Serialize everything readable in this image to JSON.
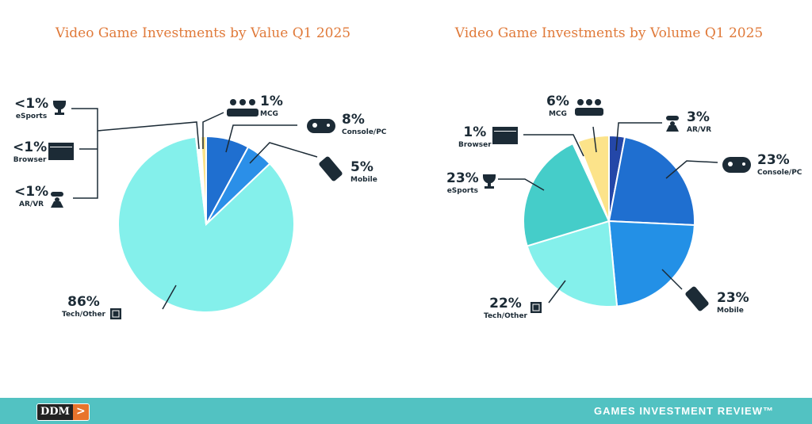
{
  "chart_data": [
    {
      "type": "pie",
      "title": "Video Game Investments by Value Q1 2025",
      "slices": [
        {
          "label": "Console/PC",
          "value": 8,
          "display": "8%",
          "color": "#1f6fd0"
        },
        {
          "label": "Mobile",
          "value": 5,
          "display": "5%",
          "color": "#2b8fe8"
        },
        {
          "label": "Tech/Other",
          "value": 86,
          "display": "86%",
          "color": "#84f0eb"
        },
        {
          "label": "AR/VR",
          "value": 0.3,
          "display": "<1%",
          "color": "#2447a8"
        },
        {
          "label": "Browser",
          "value": 0.3,
          "display": "<1%",
          "color": "#ffffff"
        },
        {
          "label": "eSports",
          "value": 0.3,
          "display": "<1%",
          "color": "#45cdc9"
        },
        {
          "label": "MCG",
          "value": 1,
          "display": "1%",
          "color": "#fce38a"
        }
      ]
    },
    {
      "type": "pie",
      "title": "Video Game Investments by Volume Q1 2025",
      "slices": [
        {
          "label": "AR/VR",
          "value": 3,
          "display": "3%",
          "color": "#2447a8"
        },
        {
          "label": "Console/PC",
          "value": 23,
          "display": "23%",
          "color": "#1f6fd0"
        },
        {
          "label": "Mobile",
          "value": 23,
          "display": "23%",
          "color": "#2390e6"
        },
        {
          "label": "Tech/Other",
          "value": 22,
          "display": "22%",
          "color": "#84f0eb"
        },
        {
          "label": "eSports",
          "value": 23,
          "display": "23%",
          "color": "#45cdc9"
        },
        {
          "label": "Browser",
          "value": 1,
          "display": "1%",
          "color": "#ffffff"
        },
        {
          "label": "MCG",
          "value": 6,
          "display": "6%",
          "color": "#fce38a"
        }
      ]
    }
  ],
  "footer": {
    "logo": "DDM",
    "logo_arrow": ">",
    "brand": "GAMES INVESTMENT REVIEW™"
  }
}
